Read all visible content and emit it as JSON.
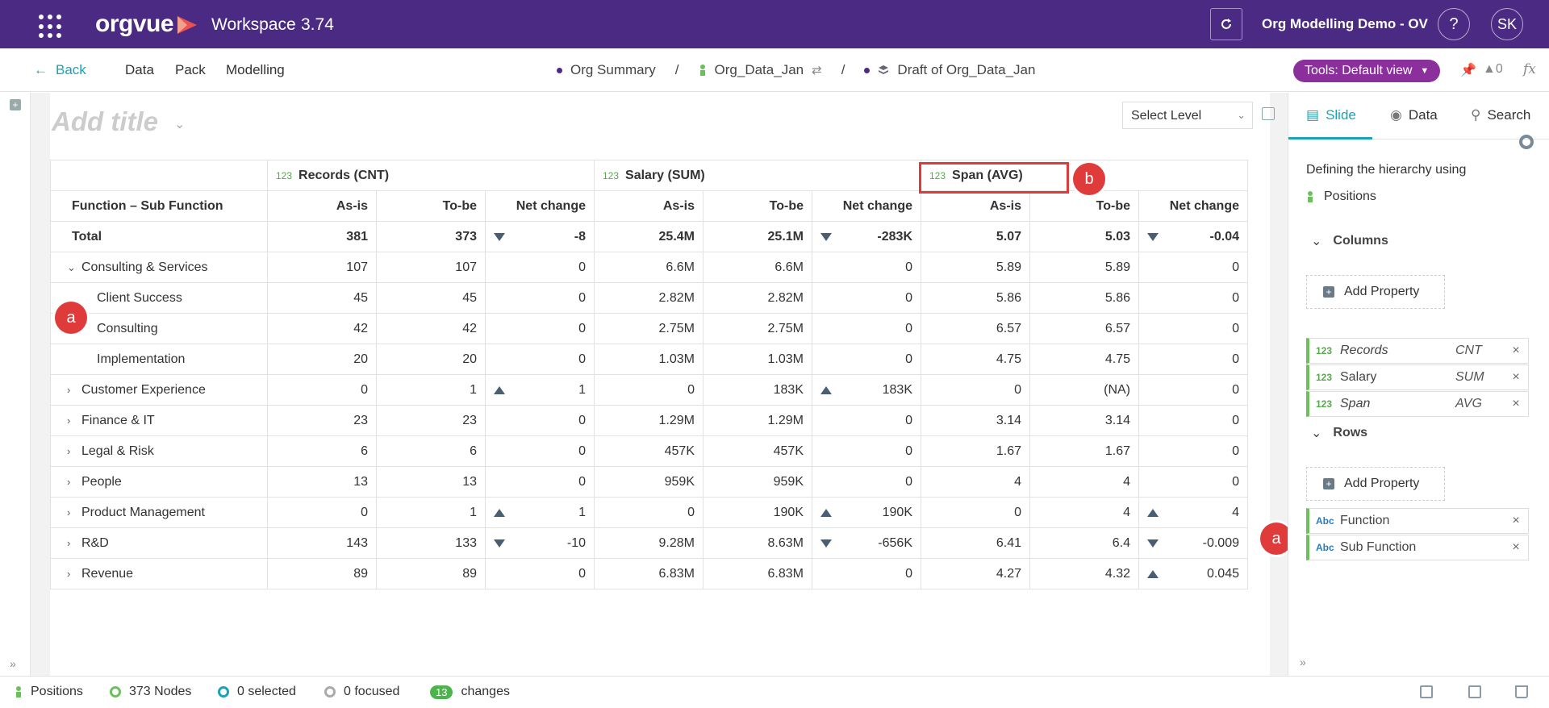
{
  "app": {
    "brand": "orgvue",
    "workspace": "Workspace",
    "version": "3.74",
    "project": "Org Modelling Demo - OV",
    "help": "?",
    "avatar": "SK"
  },
  "nav": {
    "back": "Back",
    "items": [
      "Data",
      "Pack",
      "Modelling"
    ],
    "breadcrumbs": [
      "Org Summary",
      "Org_Data_Jan",
      "Draft of Org_Data_Jan"
    ],
    "separator": "/",
    "tools": "Tools: Default view",
    "person_count": "0",
    "fx": "fx"
  },
  "slide": {
    "title_placeholder": "Add title",
    "select_level": "Select Level"
  },
  "table": {
    "row_header": "Function – Sub Function",
    "measures": [
      {
        "tag": "123",
        "name": "Records",
        "agg": "(CNT)"
      },
      {
        "tag": "123",
        "name": "Salary",
        "agg": "(SUM)"
      },
      {
        "tag": "123",
        "name": "Span",
        "agg": "(AVG)"
      }
    ],
    "subheaders": [
      "As-is",
      "To-be",
      "Net change"
    ],
    "rows": [
      {
        "label": "Total",
        "kind": "total",
        "cells": [
          "381",
          "373",
          "-8",
          "25.4M",
          "25.1M",
          "-283K",
          "5.07",
          "5.03",
          "-0.04"
        ],
        "arrows": [
          "",
          "",
          "down",
          "",
          "",
          "down",
          "",
          "",
          "down"
        ]
      },
      {
        "label": "Consulting & Services",
        "kind": "expanded",
        "cells": [
          "107",
          "107",
          "0",
          "6.6M",
          "6.6M",
          "0",
          "5.89",
          "5.89",
          "0"
        ],
        "arrows": [
          "",
          "",
          "",
          "",
          "",
          "",
          "",
          "",
          ""
        ]
      },
      {
        "label": "Client Success",
        "kind": "child",
        "cells": [
          "45",
          "45",
          "0",
          "2.82M",
          "2.82M",
          "0",
          "5.86",
          "5.86",
          "0"
        ],
        "arrows": [
          "",
          "",
          "",
          "",
          "",
          "",
          "",
          "",
          ""
        ]
      },
      {
        "label": "Consulting",
        "kind": "child",
        "cells": [
          "42",
          "42",
          "0",
          "2.75M",
          "2.75M",
          "0",
          "6.57",
          "6.57",
          "0"
        ],
        "arrows": [
          "",
          "",
          "",
          "",
          "",
          "",
          "",
          "",
          ""
        ]
      },
      {
        "label": "Implementation",
        "kind": "child",
        "cells": [
          "20",
          "20",
          "0",
          "1.03M",
          "1.03M",
          "0",
          "4.75",
          "4.75",
          "0"
        ],
        "arrows": [
          "",
          "",
          "",
          "",
          "",
          "",
          "",
          "",
          ""
        ]
      },
      {
        "label": "Customer Experience",
        "kind": "collapsed",
        "cells": [
          "0",
          "1",
          "1",
          "0",
          "183K",
          "183K",
          "0",
          "(NA)",
          "0"
        ],
        "arrows": [
          "",
          "",
          "up",
          "",
          "",
          "up",
          "",
          "",
          ""
        ]
      },
      {
        "label": "Finance & IT",
        "kind": "collapsed",
        "cells": [
          "23",
          "23",
          "0",
          "1.29M",
          "1.29M",
          "0",
          "3.14",
          "3.14",
          "0"
        ],
        "arrows": [
          "",
          "",
          "",
          "",
          "",
          "",
          "",
          "",
          ""
        ]
      },
      {
        "label": "Legal & Risk",
        "kind": "collapsed",
        "cells": [
          "6",
          "6",
          "0",
          "457K",
          "457K",
          "0",
          "1.67",
          "1.67",
          "0"
        ],
        "arrows": [
          "",
          "",
          "",
          "",
          "",
          "",
          "",
          "",
          ""
        ]
      },
      {
        "label": "People",
        "kind": "collapsed",
        "cells": [
          "13",
          "13",
          "0",
          "959K",
          "959K",
          "0",
          "4",
          "4",
          "0"
        ],
        "arrows": [
          "",
          "",
          "",
          "",
          "",
          "",
          "",
          "",
          ""
        ]
      },
      {
        "label": "Product Management",
        "kind": "collapsed",
        "cells": [
          "0",
          "1",
          "1",
          "0",
          "190K",
          "190K",
          "0",
          "4",
          "4"
        ],
        "arrows": [
          "",
          "",
          "up",
          "",
          "",
          "up",
          "",
          "",
          "up"
        ]
      },
      {
        "label": "R&D",
        "kind": "collapsed",
        "cells": [
          "143",
          "133",
          "-10",
          "9.28M",
          "8.63M",
          "-656K",
          "6.41",
          "6.4",
          "-0.009"
        ],
        "arrows": [
          "",
          "",
          "down",
          "",
          "",
          "down",
          "",
          "",
          "down"
        ]
      },
      {
        "label": "Revenue",
        "kind": "collapsed",
        "cells": [
          "89",
          "89",
          "0",
          "6.83M",
          "6.83M",
          "0",
          "4.27",
          "4.32",
          "0.045"
        ],
        "arrows": [
          "",
          "",
          "",
          "",
          "",
          "",
          "",
          "",
          "up"
        ]
      }
    ]
  },
  "callouts": {
    "a": "a",
    "b": "b"
  },
  "right_panel": {
    "tabs": [
      "Slide",
      "Data",
      "Search"
    ],
    "hierarchy_text": "Defining the hierarchy using",
    "hierarchy_value": "Positions",
    "columns_label": "Columns",
    "rows_label": "Rows",
    "add_property": "Add Property",
    "columns": [
      {
        "type": "123",
        "name": "Records",
        "agg": "CNT",
        "italic": true
      },
      {
        "type": "123",
        "name": "Salary",
        "agg": "SUM",
        "italic": false
      },
      {
        "type": "123",
        "name": "Span",
        "agg": "AVG",
        "italic": true
      }
    ],
    "rows": [
      {
        "type": "Abc",
        "name": "Function"
      },
      {
        "type": "Abc",
        "name": "Sub Function"
      }
    ],
    "remove": "×"
  },
  "status": {
    "positions": "Positions",
    "nodes": "373 Nodes",
    "selected": "0 selected",
    "focused": "0 focused",
    "changes_count": "13",
    "changes": "changes"
  },
  "colors": {
    "brand": "#4b2a84",
    "accent": "#1aa3b4",
    "tools": "#8b2f9c",
    "callout": "#e03b3b"
  }
}
